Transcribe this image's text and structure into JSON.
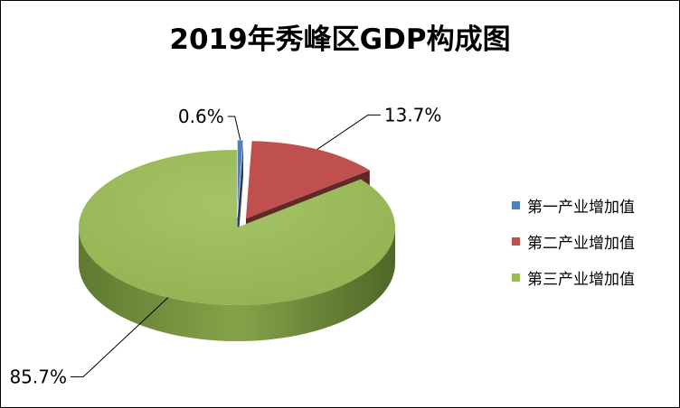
{
  "chart_data": {
    "type": "pie",
    "title": "2019年秀峰区GDP构成图",
    "series": [
      {
        "name": "第一产业增加值",
        "value": 0.6,
        "label": "0.6%",
        "color": "#4f81bd"
      },
      {
        "name": "第二产业增加值",
        "value": 13.7,
        "label": "13.7%",
        "color": "#c0504d"
      },
      {
        "name": "第三产业增加值",
        "value": 85.7,
        "label": "85.7%",
        "color": "#9bbb59"
      }
    ],
    "legend_position": "right",
    "style": "3d-exploded"
  }
}
